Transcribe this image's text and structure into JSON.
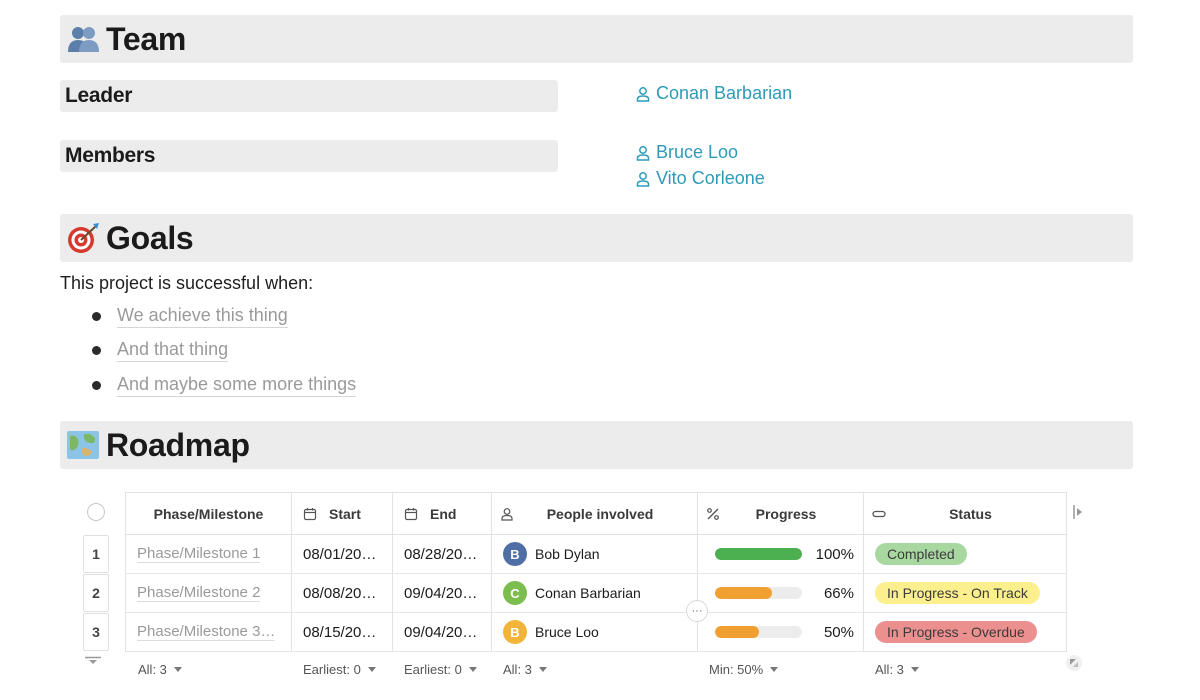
{
  "team": {
    "heading": "Team",
    "heading_icon": "people-icon",
    "leader_label": "Leader",
    "leader": "Conan Barbarian",
    "members_label": "Members",
    "members": [
      "Bruce Loo",
      "Vito Corleone"
    ]
  },
  "goals": {
    "heading": "Goals",
    "heading_icon": "target-icon",
    "intro": "This project is successful when:",
    "items": [
      "We achieve this thing",
      "And that thing",
      "And maybe some more things"
    ]
  },
  "roadmap": {
    "heading": "Roadmap",
    "heading_icon": "map-icon",
    "columns": {
      "phase": "Phase/Milestone",
      "start": "Start",
      "end": "End",
      "people": "People involved",
      "progress": "Progress",
      "status": "Status"
    },
    "rows": [
      {
        "num": "1",
        "phase": "Phase/Milestone 1",
        "start": "08/01/20…",
        "end": "08/28/20…",
        "initial": "B",
        "person": "Bob Dylan",
        "avatar_color": "#4f6fa5",
        "progress": 1.0,
        "progress_label": "100%",
        "bar_color": "#4caf50",
        "status": "Completed",
        "status_color": "#a8d8a0"
      },
      {
        "num": "2",
        "phase": "Phase/Milestone 2",
        "start": "08/08/20…",
        "end": "09/04/20…",
        "initial": "C",
        "person": "Conan Barbarian",
        "avatar_color": "#7cbd4f",
        "progress": 0.66,
        "progress_label": "66%",
        "bar_color": "#f0a030",
        "status": "In Progress - On Track",
        "status_color": "#fbef8e"
      },
      {
        "num": "3",
        "phase": "Phase/Milestone 3…",
        "start": "08/15/20…",
        "end": "09/04/20…",
        "initial": "B",
        "person": "Bruce Loo",
        "avatar_color": "#f2b53a",
        "progress": 0.5,
        "progress_label": "50%",
        "bar_color": "#f0a030",
        "status": "In Progress - Overdue",
        "status_color": "#ec8f8f"
      }
    ],
    "footer": {
      "phase": "All: 3",
      "start": "Earliest: 0",
      "end": "Earliest: 0",
      "people": "All: 3",
      "progress": "Min: 50%",
      "status": "All: 3"
    },
    "more_label": "···"
  }
}
